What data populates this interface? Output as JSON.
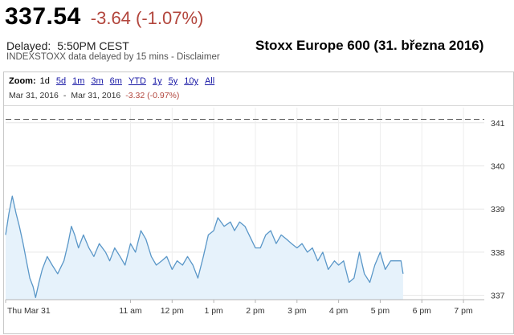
{
  "header": {
    "price": "337.54",
    "change": "-3.64 (-1.07%)",
    "delayed_label": "Delayed:",
    "delayed_time": "5:50PM CEST",
    "source_note": "INDEXSTOXX data delayed by 15 mins - Disclaimer",
    "caption": "Stoxx Europe 600 (31. března 2016)"
  },
  "zoom": {
    "label": "Zoom:",
    "options": [
      "1d",
      "5d",
      "1m",
      "3m",
      "6m",
      "YTD",
      "1y",
      "5y",
      "10y",
      "All"
    ],
    "active": "1d"
  },
  "range": {
    "from": "Mar 31, 2016",
    "separator": "-",
    "to": "Mar 31, 2016",
    "change": "-3.32 (-0.97%)"
  },
  "colors": {
    "line": "#5a97c8",
    "fill": "#e6f2fb",
    "change_negative": "#b2453c",
    "prev_close_line": "#555555"
  },
  "chart_data": {
    "type": "area",
    "x_unit": "hours (CEST)",
    "x_tick_values": [
      8,
      11,
      12,
      13,
      14,
      15,
      16,
      17,
      18,
      19
    ],
    "x_tick_labels": [
      "Thu Mar 31",
      "11 am",
      "12 pm",
      "1 pm",
      "2 pm",
      "3 pm",
      "4 pm",
      "5 pm",
      "6 pm",
      "7 pm"
    ],
    "y_ticks": [
      337,
      338,
      339,
      340,
      341
    ],
    "xlim": [
      8,
      19.5
    ],
    "ylim": [
      336.9,
      341.35
    ],
    "reference_line": 341.08,
    "grid": true,
    "points": [
      [
        8.0,
        338.4
      ],
      [
        8.08,
        338.9
      ],
      [
        8.16,
        339.3
      ],
      [
        8.25,
        338.9
      ],
      [
        8.33,
        338.6
      ],
      [
        8.42,
        338.2
      ],
      [
        8.5,
        337.8
      ],
      [
        8.58,
        337.4
      ],
      [
        8.66,
        337.2
      ],
      [
        8.72,
        336.95
      ],
      [
        8.8,
        337.3
      ],
      [
        8.88,
        337.6
      ],
      [
        9.0,
        337.9
      ],
      [
        9.12,
        337.7
      ],
      [
        9.25,
        337.5
      ],
      [
        9.4,
        337.8
      ],
      [
        9.5,
        338.2
      ],
      [
        9.58,
        338.6
      ],
      [
        9.66,
        338.4
      ],
      [
        9.75,
        338.1
      ],
      [
        9.87,
        338.4
      ],
      [
        10.0,
        338.1
      ],
      [
        10.12,
        337.9
      ],
      [
        10.25,
        338.2
      ],
      [
        10.4,
        338.0
      ],
      [
        10.5,
        337.8
      ],
      [
        10.62,
        338.1
      ],
      [
        10.75,
        337.9
      ],
      [
        10.87,
        337.7
      ],
      [
        11.0,
        338.2
      ],
      [
        11.12,
        338.0
      ],
      [
        11.25,
        338.5
      ],
      [
        11.37,
        338.3
      ],
      [
        11.5,
        337.9
      ],
      [
        11.62,
        337.7
      ],
      [
        11.75,
        337.8
      ],
      [
        11.87,
        337.9
      ],
      [
        12.0,
        337.6
      ],
      [
        12.12,
        337.8
      ],
      [
        12.25,
        337.7
      ],
      [
        12.37,
        337.9
      ],
      [
        12.5,
        337.7
      ],
      [
        12.62,
        337.4
      ],
      [
        12.75,
        337.9
      ],
      [
        12.87,
        338.4
      ],
      [
        13.0,
        338.5
      ],
      [
        13.1,
        338.8
      ],
      [
        13.25,
        338.6
      ],
      [
        13.4,
        338.7
      ],
      [
        13.5,
        338.5
      ],
      [
        13.62,
        338.7
      ],
      [
        13.75,
        338.6
      ],
      [
        13.9,
        338.3
      ],
      [
        14.0,
        338.1
      ],
      [
        14.12,
        338.1
      ],
      [
        14.25,
        338.4
      ],
      [
        14.37,
        338.5
      ],
      [
        14.5,
        338.2
      ],
      [
        14.62,
        338.4
      ],
      [
        14.75,
        338.3
      ],
      [
        14.87,
        338.2
      ],
      [
        15.0,
        338.1
      ],
      [
        15.12,
        338.2
      ],
      [
        15.25,
        338.0
      ],
      [
        15.37,
        338.1
      ],
      [
        15.5,
        337.8
      ],
      [
        15.62,
        338.0
      ],
      [
        15.75,
        337.6
      ],
      [
        15.9,
        337.8
      ],
      [
        16.0,
        337.7
      ],
      [
        16.12,
        337.8
      ],
      [
        16.25,
        337.3
      ],
      [
        16.37,
        337.4
      ],
      [
        16.5,
        338.0
      ],
      [
        16.62,
        337.5
      ],
      [
        16.75,
        337.3
      ],
      [
        16.87,
        337.7
      ],
      [
        17.0,
        338.0
      ],
      [
        17.12,
        337.6
      ],
      [
        17.25,
        337.8
      ],
      [
        17.37,
        337.8
      ],
      [
        17.5,
        337.8
      ],
      [
        17.55,
        337.5
      ]
    ]
  }
}
